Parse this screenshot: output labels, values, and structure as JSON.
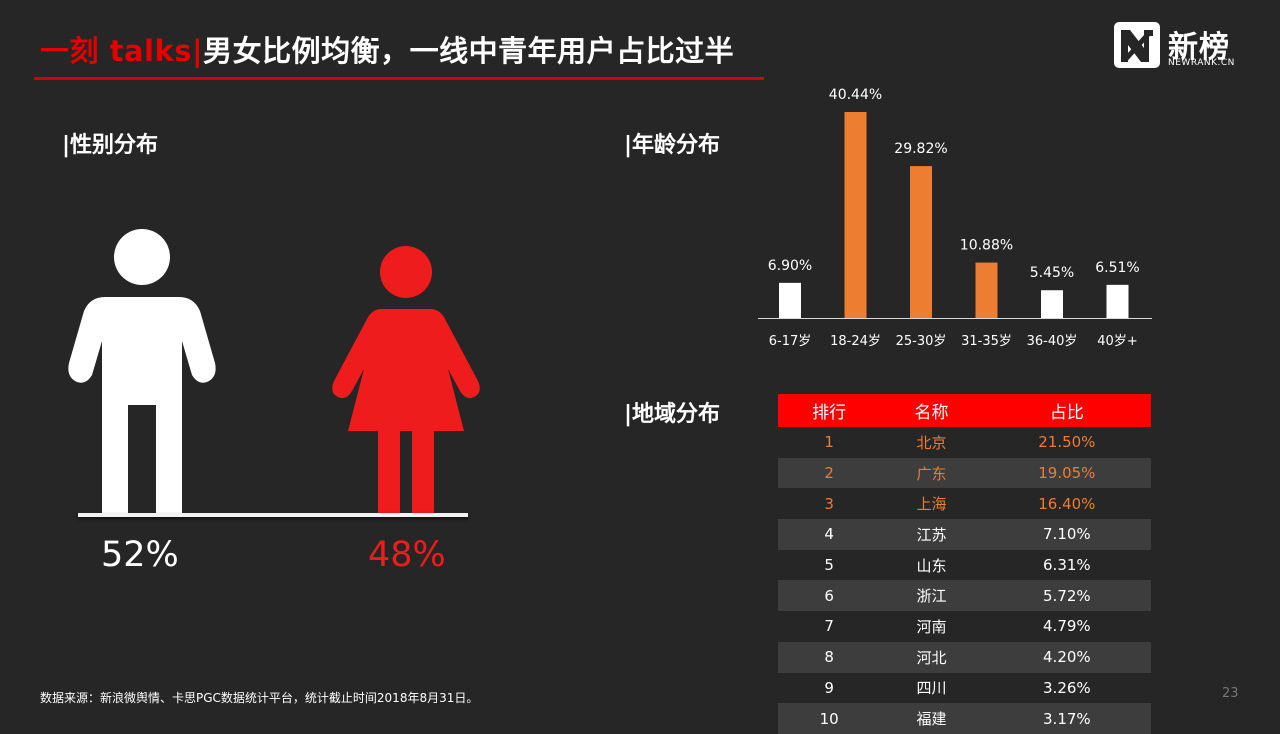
{
  "header": {
    "brand": "一刻 talks|",
    "title": "男女比例均衡，一线中青年用户占比过半"
  },
  "logo": {
    "name": "新榜",
    "sub": "NEWRANK.CN"
  },
  "gender": {
    "section_label": "|性别分布",
    "male_percent": "52%",
    "female_percent": "48%",
    "male_color": "#ffffff",
    "female_color": "#ee1c1c"
  },
  "age": {
    "section_label": "|年龄分布"
  },
  "region": {
    "section_label": "|地域分布",
    "columns": [
      "排行",
      "名称",
      "占比"
    ],
    "rows": [
      [
        "1",
        "北京",
        "21.50%"
      ],
      [
        "2",
        "广东",
        "19.05%"
      ],
      [
        "3",
        "上海",
        "16.40%"
      ],
      [
        "4",
        "江苏",
        "7.10%"
      ],
      [
        "5",
        "山东",
        "6.31%"
      ],
      [
        "6",
        "浙江",
        "5.72%"
      ],
      [
        "7",
        "河南",
        "4.79%"
      ],
      [
        "8",
        "河北",
        "4.20%"
      ],
      [
        "9",
        "四川",
        "3.26%"
      ],
      [
        "10",
        "福建",
        "3.17%"
      ]
    ],
    "header_color": "#ff0000",
    "top_color": "#ed7d31"
  },
  "chart_data": {
    "type": "bar",
    "categories": [
      "6-17岁",
      "18-24岁",
      "25-30岁",
      "31-35岁",
      "36-40岁",
      "40岁+"
    ],
    "values": [
      6.9,
      40.44,
      29.82,
      10.88,
      5.45,
      6.51
    ],
    "labels": [
      "6.90%",
      "40.44%",
      "29.82%",
      "10.88%",
      "5.45%",
      "6.51%"
    ],
    "colors": [
      "#ffffff",
      "#ed7d31",
      "#ed7d31",
      "#ed7d31",
      "#ffffff",
      "#ffffff"
    ],
    "ylim": [
      0,
      40.44
    ],
    "grid": false,
    "legend": "none"
  },
  "footer": {
    "source": "数据来源：新浪微舆情、卡思PGC数据统计平台，统计截止时间2018年8月31日。",
    "page": "23"
  }
}
